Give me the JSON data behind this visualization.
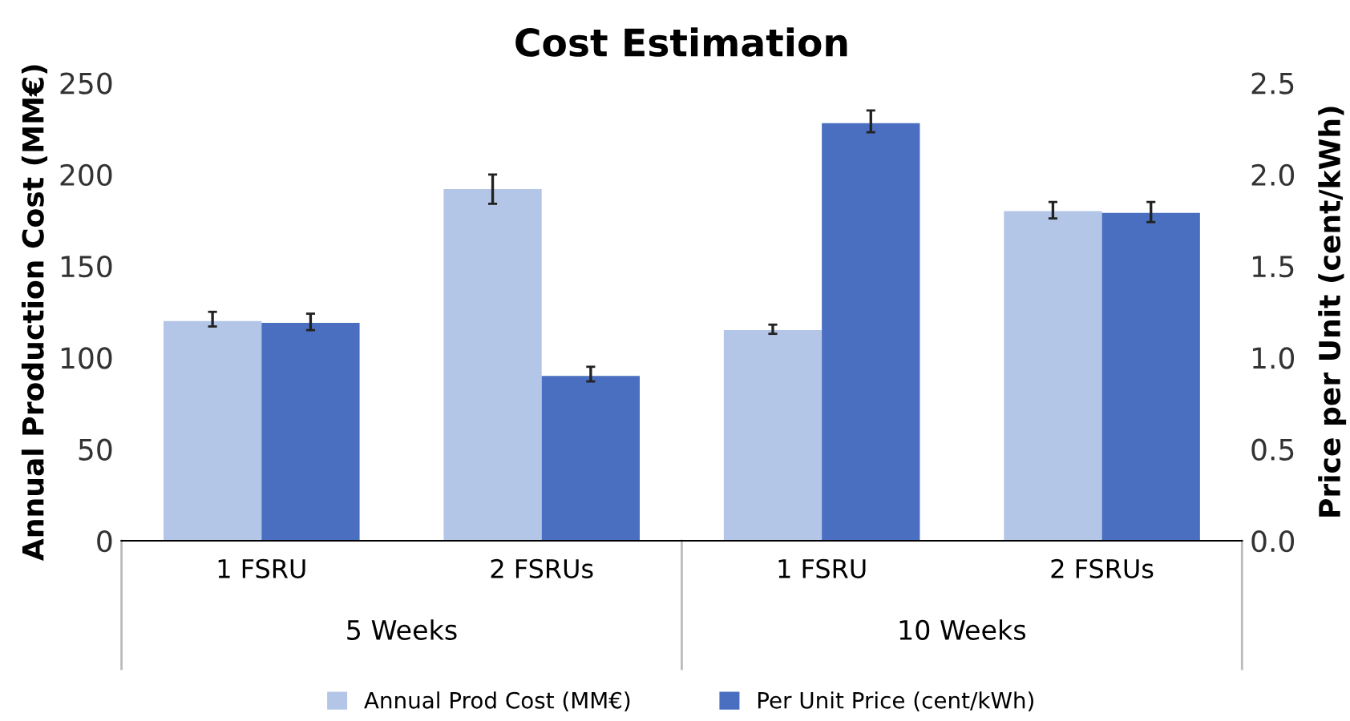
{
  "chart_data": {
    "type": "bar",
    "title": "Cost Estimation",
    "ylabel": "Annual Production Cost (MM€)",
    "y2label": "Price per Unit (cent/kWh)",
    "categories": [
      "1 FSRU",
      "2 FSRUs",
      "1 FSRU",
      "2 FSRUs"
    ],
    "series": [
      {
        "name": "Annual Prod Cost (MM€)",
        "color": "#b4c6e7",
        "values": [
          120,
          192,
          115,
          180
        ],
        "errors": [
          [
            117,
            125
          ],
          [
            184,
            200
          ],
          [
            113,
            118
          ],
          [
            176,
            185
          ]
        ]
      },
      {
        "name": "Per Unit Price (cent/kWh)",
        "color": "#4a6fc0",
        "axis": "y2",
        "values": [
          1.19,
          0.9,
          2.28,
          1.79
        ],
        "errors": [
          [
            1.15,
            1.24
          ],
          [
            0.87,
            0.95
          ],
          [
            2.23,
            2.35
          ],
          [
            1.74,
            1.85
          ]
        ]
      }
    ],
    "ylim": [
      0,
      250
    ],
    "yticks": [
      0,
      50,
      100,
      150,
      200,
      250
    ],
    "y2lim": [
      0,
      2.5
    ],
    "y2ticks": [
      {
        "value": 0,
        "label": "0.0"
      },
      {
        "value": 0.5,
        "label": "0.5"
      },
      {
        "value": 1,
        "label": "1.0"
      },
      {
        "value": 1.5,
        "label": "1.5"
      },
      {
        "value": 2,
        "label": "2.0"
      },
      {
        "value": 2.5,
        "label": "2.5"
      }
    ],
    "annotations": [
      "5 Weeks",
      "10 Weeks"
    ],
    "grid": false,
    "legend": "bottom"
  }
}
